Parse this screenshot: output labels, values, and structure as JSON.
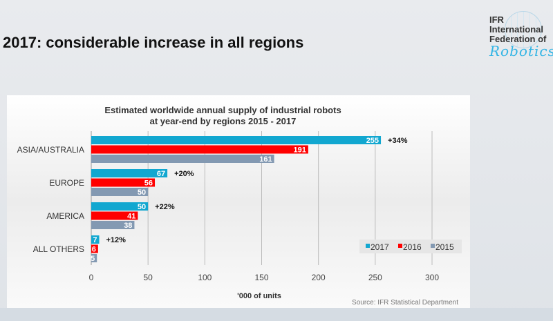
{
  "slide": {
    "title": "2017: considerable increase in all regions"
  },
  "logo": {
    "line1": "IFR",
    "line2": "International",
    "line3": "Federation of",
    "line4": "Robotics"
  },
  "source": "Source: IFR Statistical Department",
  "colors": {
    "2017": "#12a7d0",
    "2016": "#ff0000",
    "2015": "#8399b2"
  },
  "chart_data": {
    "type": "bar",
    "orientation": "horizontal",
    "title_line1": "Estimated worldwide annual supply of industrial robots",
    "title_line2": "at year-end by regions 2015 - 2017",
    "xlabel": "'000 of units",
    "xlim": [
      0,
      300
    ],
    "xticks": [
      0,
      50,
      100,
      150,
      200,
      250,
      300
    ],
    "grid": true,
    "legend": "bottom-right",
    "categories": [
      "ASIA/AUSTRALIA",
      "EUROPE",
      "AMERICA",
      "ALL OTHERS"
    ],
    "series": [
      {
        "name": "2017",
        "values": [
          255,
          67,
          50,
          7
        ]
      },
      {
        "name": "2016",
        "values": [
          191,
          56,
          41,
          6
        ]
      },
      {
        "name": "2015",
        "values": [
          161,
          50,
          38,
          5
        ]
      }
    ],
    "annotations": [
      "+34%",
      "+20%",
      "+22%",
      "+12%"
    ]
  }
}
